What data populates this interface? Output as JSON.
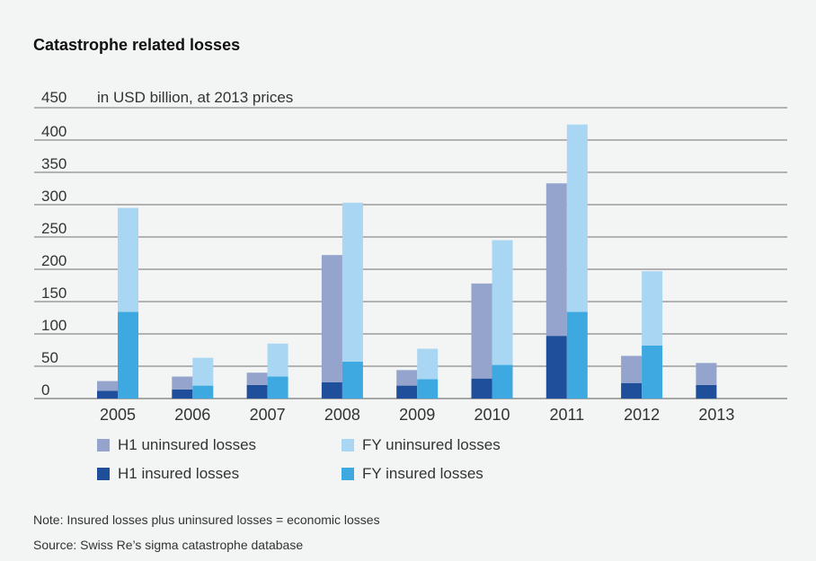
{
  "chart_data": {
    "type": "bar",
    "title": "Catastrophe related losses",
    "unit_label": "in USD billion, at 2013 prices",
    "ylim": [
      0,
      450
    ],
    "yticks": [
      0,
      50,
      100,
      150,
      200,
      250,
      300,
      350,
      400,
      450
    ],
    "grid": true,
    "categories": [
      "2005",
      "2006",
      "2007",
      "2008",
      "2009",
      "2010",
      "2011",
      "2012",
      "2013"
    ],
    "series": [
      {
        "name": "H1 insured losses",
        "stack": "H1",
        "color": "#1f4f9a",
        "values": [
          12,
          14,
          21,
          25,
          20,
          31,
          97,
          24,
          21
        ]
      },
      {
        "name": "H1 uninsured losses",
        "stack": "H1",
        "color": "#94a4cc",
        "values": [
          15,
          20,
          19,
          197,
          24,
          147,
          236,
          42,
          34
        ]
      },
      {
        "name": "FY insured losses",
        "stack": "FY",
        "color": "#3ea9e0",
        "values": [
          134,
          20,
          34,
          57,
          30,
          52,
          134,
          82,
          null
        ]
      },
      {
        "name": "FY uninsured losses",
        "stack": "FY",
        "color": "#a9d6f2",
        "values": [
          161,
          43,
          51,
          246,
          47,
          193,
          290,
          115,
          null
        ]
      }
    ],
    "legend": {
      "placement": "bottom",
      "items": [
        "H1 uninsured losses",
        "FY uninsured losses",
        "H1 insured losses",
        "FY insured losses"
      ]
    }
  },
  "notes": {
    "note": "Note: Insured losses plus uninsured losses = economic losses",
    "source": "Source: Swiss Re’s sigma catastrophe database"
  }
}
